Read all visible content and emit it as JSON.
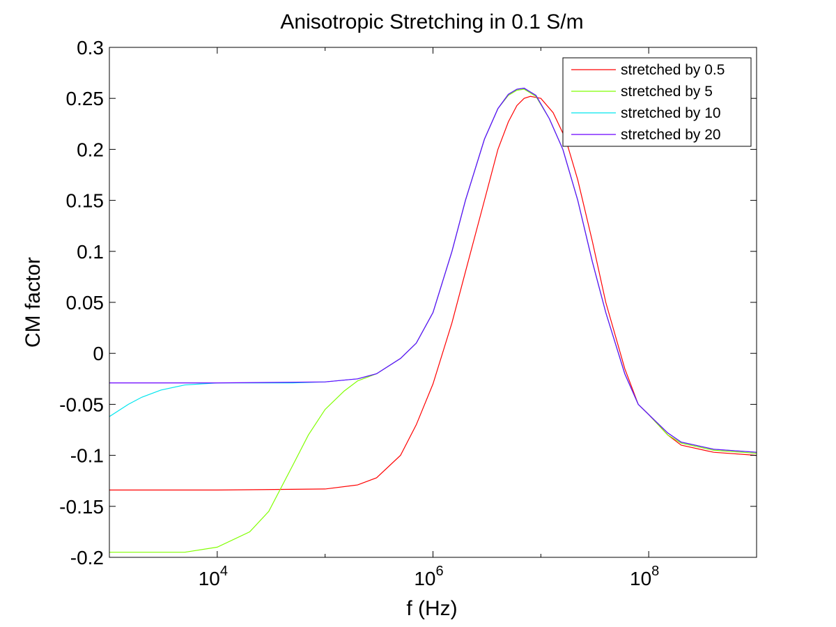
{
  "chart_data": {
    "type": "line",
    "title": "Anisotropic Stretching in 0.1 S/m",
    "xlabel": "f (Hz)",
    "ylabel": "CM factor",
    "xscale": "log",
    "xlim": [
      1000,
      1000000000
    ],
    "ylim": [
      -0.2,
      0.3
    ],
    "x_ticks": [
      {
        "value": 10000,
        "base": "10",
        "exp": "4"
      },
      {
        "value": 1000000,
        "base": "10",
        "exp": "6"
      },
      {
        "value": 100000000,
        "base": "10",
        "exp": "8"
      }
    ],
    "y_ticks": [
      {
        "value": 0.3,
        "label": "0.3"
      },
      {
        "value": 0.25,
        "label": "0.25"
      },
      {
        "value": 0.2,
        "label": "0.2"
      },
      {
        "value": 0.15,
        "label": "0.15"
      },
      {
        "value": 0.1,
        "label": "0.1"
      },
      {
        "value": 0.05,
        "label": "0.05"
      },
      {
        "value": 0,
        "label": "0"
      },
      {
        "value": -0.05,
        "label": "-0.05"
      },
      {
        "value": -0.1,
        "label": "-0.1"
      },
      {
        "value": -0.15,
        "label": "-0.15"
      },
      {
        "value": -0.2,
        "label": "-0.2"
      }
    ],
    "grid": false,
    "legend_position": "top-right",
    "series": [
      {
        "name": "stretched by 0.5",
        "color": "#ff0000",
        "points": [
          [
            1000,
            -0.134
          ],
          [
            10000,
            -0.134
          ],
          [
            100000,
            -0.133
          ],
          [
            200000,
            -0.129
          ],
          [
            300000,
            -0.122
          ],
          [
            500000,
            -0.1
          ],
          [
            700000,
            -0.07
          ],
          [
            1000000,
            -0.03
          ],
          [
            1500000,
            0.03
          ],
          [
            2000000,
            0.08
          ],
          [
            3000000,
            0.15
          ],
          [
            4000000,
            0.2
          ],
          [
            5000000,
            0.227
          ],
          [
            6000000,
            0.243
          ],
          [
            7000000,
            0.25
          ],
          [
            8000000,
            0.252
          ],
          [
            10000000,
            0.25
          ],
          [
            13000000,
            0.236
          ],
          [
            17000000,
            0.21
          ],
          [
            22000000,
            0.17
          ],
          [
            30000000,
            0.11
          ],
          [
            40000000,
            0.05
          ],
          [
            60000000,
            -0.015
          ],
          [
            80000000,
            -0.05
          ],
          [
            100000000,
            -0.06
          ],
          [
            150000000,
            -0.08
          ],
          [
            200000000,
            -0.09
          ],
          [
            400000000,
            -0.097
          ],
          [
            1000000000,
            -0.1
          ]
        ]
      },
      {
        "name": "stretched by 5",
        "color": "#80ff00",
        "points": [
          [
            1000,
            -0.195
          ],
          [
            5000,
            -0.195
          ],
          [
            10000,
            -0.19
          ],
          [
            20000,
            -0.175
          ],
          [
            30000,
            -0.155
          ],
          [
            50000,
            -0.11
          ],
          [
            70000,
            -0.08
          ],
          [
            100000,
            -0.055
          ],
          [
            150000,
            -0.037
          ],
          [
            200000,
            -0.027
          ],
          [
            300000,
            -0.02
          ],
          [
            500000,
            -0.005
          ],
          [
            700000,
            0.01
          ],
          [
            1000000,
            0.04
          ],
          [
            1500000,
            0.1
          ],
          [
            2000000,
            0.15
          ],
          [
            3000000,
            0.21
          ],
          [
            4000000,
            0.24
          ],
          [
            5000000,
            0.253
          ],
          [
            6000000,
            0.258
          ],
          [
            7000000,
            0.259
          ],
          [
            9000000,
            0.252
          ],
          [
            12000000,
            0.23
          ],
          [
            16000000,
            0.2
          ],
          [
            22000000,
            0.15
          ],
          [
            30000000,
            0.09
          ],
          [
            40000000,
            0.04
          ],
          [
            60000000,
            -0.02
          ],
          [
            80000000,
            -0.05
          ],
          [
            100000000,
            -0.06
          ],
          [
            150000000,
            -0.08
          ],
          [
            200000000,
            -0.088
          ],
          [
            400000000,
            -0.095
          ],
          [
            1000000000,
            -0.098
          ]
        ]
      },
      {
        "name": "stretched by 10",
        "color": "#00e5ee",
        "points": [
          [
            1000,
            -0.062
          ],
          [
            1500,
            -0.05
          ],
          [
            2000,
            -0.043
          ],
          [
            3000,
            -0.036
          ],
          [
            5000,
            -0.031
          ],
          [
            7000,
            -0.03
          ],
          [
            10000,
            -0.029
          ],
          [
            50000,
            -0.029
          ],
          [
            100000,
            -0.028
          ],
          [
            200000,
            -0.025
          ],
          [
            300000,
            -0.02
          ],
          [
            500000,
            -0.005
          ],
          [
            700000,
            0.01
          ],
          [
            1000000,
            0.04
          ],
          [
            1500000,
            0.1
          ],
          [
            2000000,
            0.15
          ],
          [
            3000000,
            0.21
          ],
          [
            4000000,
            0.24
          ],
          [
            5000000,
            0.254
          ],
          [
            6000000,
            0.259
          ],
          [
            7000000,
            0.26
          ],
          [
            9000000,
            0.253
          ],
          [
            12000000,
            0.23
          ],
          [
            16000000,
            0.2
          ],
          [
            22000000,
            0.15
          ],
          [
            30000000,
            0.09
          ],
          [
            40000000,
            0.04
          ],
          [
            60000000,
            -0.02
          ],
          [
            80000000,
            -0.05
          ],
          [
            100000000,
            -0.06
          ],
          [
            150000000,
            -0.078
          ],
          [
            200000000,
            -0.087
          ],
          [
            400000000,
            -0.094
          ],
          [
            1000000000,
            -0.097
          ]
        ]
      },
      {
        "name": "stretched by 20",
        "color": "#6a00ff",
        "points": [
          [
            1000,
            -0.029
          ],
          [
            10000,
            -0.029
          ],
          [
            100000,
            -0.028
          ],
          [
            200000,
            -0.025
          ],
          [
            300000,
            -0.02
          ],
          [
            500000,
            -0.005
          ],
          [
            700000,
            0.01
          ],
          [
            1000000,
            0.04
          ],
          [
            1500000,
            0.1
          ],
          [
            2000000,
            0.15
          ],
          [
            3000000,
            0.21
          ],
          [
            4000000,
            0.24
          ],
          [
            5000000,
            0.254
          ],
          [
            6000000,
            0.259
          ],
          [
            7000000,
            0.26
          ],
          [
            9000000,
            0.253
          ],
          [
            12000000,
            0.23
          ],
          [
            16000000,
            0.2
          ],
          [
            22000000,
            0.15
          ],
          [
            30000000,
            0.09
          ],
          [
            40000000,
            0.04
          ],
          [
            60000000,
            -0.02
          ],
          [
            80000000,
            -0.05
          ],
          [
            100000000,
            -0.06
          ],
          [
            150000000,
            -0.078
          ],
          [
            200000000,
            -0.087
          ],
          [
            400000000,
            -0.094
          ],
          [
            1000000000,
            -0.097
          ]
        ]
      }
    ]
  }
}
